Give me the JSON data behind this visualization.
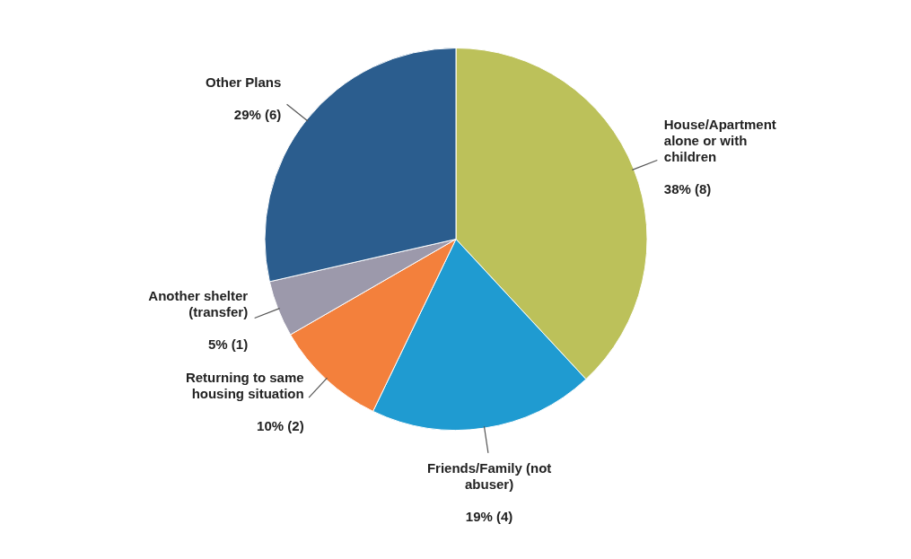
{
  "chart_data": {
    "type": "pie",
    "categories": [
      "House/Apartment alone or with children",
      "Friends/Family (not abuser)",
      "Returning to same housing situation",
      "Another shelter (transfer)",
      "Other Plans"
    ],
    "values": [
      8,
      4,
      2,
      1,
      6
    ],
    "value_labels": [
      "38% (8)",
      "19% (4)",
      "10% (2)",
      "5% (1)",
      "29% (6)"
    ],
    "colors": [
      "#bcc15a",
      "#1f9bd1",
      "#f3803c",
      "#9c99ab",
      "#2b5d8e"
    ],
    "legend": false
  }
}
